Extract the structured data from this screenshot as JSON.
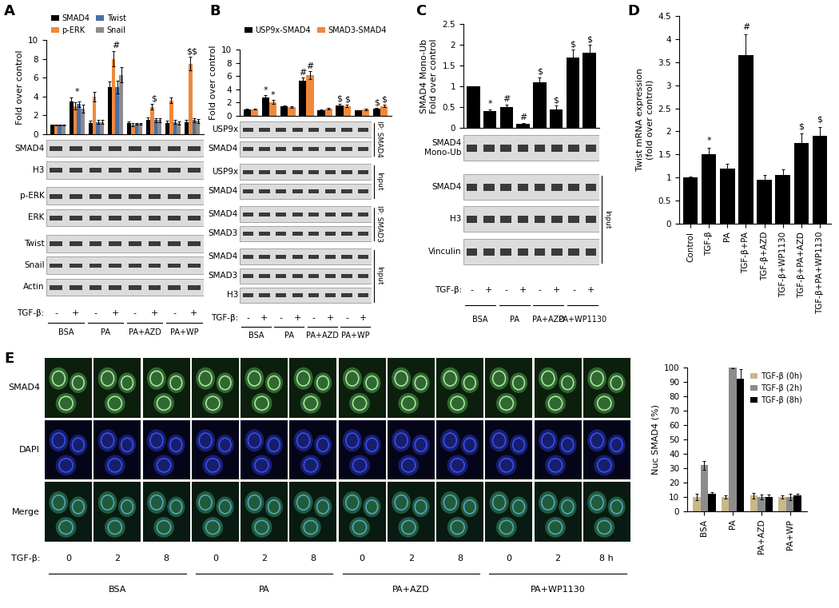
{
  "chart_data": [
    {
      "type": "bar",
      "panel": "A",
      "y_label": "Fold over control",
      "categories": [
        null,
        null,
        null,
        null,
        null,
        null,
        null,
        null
      ],
      "ylim": [
        0,
        10
      ],
      "yticks": [
        0,
        2,
        4,
        6,
        8,
        10
      ],
      "legend": "upper left",
      "annotations": [
        null,
        "*",
        null,
        "#",
        null,
        "$",
        null,
        "$$"
      ],
      "series": [
        {
          "name": "SMAD4",
          "color": "#000000",
          "values": [
            1,
            3.5,
            1.2,
            5.0,
            1.2,
            1.5,
            1.2,
            1.3
          ],
          "errors": [
            0.05,
            0.4,
            0.2,
            0.6,
            0.15,
            0.3,
            0.2,
            0.2
          ]
        },
        {
          "name": "p-ERK",
          "color": "#f0883a",
          "values": [
            1,
            3.0,
            4.0,
            8.0,
            1.0,
            2.9,
            3.6,
            7.5
          ],
          "errors": [
            0.05,
            0.4,
            0.5,
            0.8,
            0.15,
            0.3,
            0.3,
            0.7
          ]
        },
        {
          "name": "Twist",
          "color": "#4a6fa5",
          "values": [
            1,
            3.2,
            1.3,
            5.0,
            1.1,
            1.5,
            1.3,
            1.5
          ],
          "errors": [
            0.05,
            0.3,
            0.2,
            0.7,
            0.1,
            0.2,
            0.2,
            0.2
          ]
        },
        {
          "name": "Snail",
          "color": "#8c8c8c",
          "values": [
            1,
            2.7,
            1.3,
            6.3,
            1.1,
            1.5,
            1.2,
            1.4
          ],
          "errors": [
            0.05,
            0.4,
            0.2,
            0.8,
            0.1,
            0.2,
            0.15,
            0.2
          ]
        }
      ]
    },
    {
      "type": "bar",
      "panel": "B",
      "y_label": "Fold over control",
      "categories": [
        null,
        null,
        null,
        null,
        null,
        null,
        null,
        null
      ],
      "ylim": [
        0,
        10
      ],
      "yticks": [
        0,
        2,
        4,
        6,
        8,
        10
      ],
      "legend": "upper left",
      "series": [
        {
          "name": "USP9x-SMAD4",
          "color": "#000000",
          "values": [
            1,
            2.8,
            1.4,
            5.3,
            0.9,
            1.6,
            0.8,
            1.1
          ],
          "errors": [
            0.05,
            0.3,
            0.15,
            0.5,
            0.1,
            0.2,
            0.1,
            0.15
          ],
          "annotations": [
            null,
            "*",
            null,
            "#",
            null,
            "$",
            null,
            "$"
          ]
        },
        {
          "name": "SMAD3-SMAD4",
          "color": "#f0883a",
          "values": [
            1,
            2.1,
            1.3,
            6.1,
            1.1,
            1.5,
            1.0,
            1.5
          ],
          "errors": [
            0.05,
            0.25,
            0.15,
            0.6,
            0.1,
            0.2,
            0.1,
            0.2
          ],
          "annotations": [
            null,
            "*",
            null,
            "#",
            null,
            "$",
            null,
            "$"
          ]
        }
      ]
    },
    {
      "type": "bar",
      "panel": "C",
      "y_label": "SMAD4 Mono-Ub\nFold over control",
      "categories": [
        null,
        null,
        null,
        null,
        null,
        null,
        null,
        null
      ],
      "ylim": [
        0,
        2.5
      ],
      "yticks": [
        0,
        0.5,
        1,
        1.5,
        2,
        2.5
      ],
      "series": [
        {
          "name": "SMAD4 Mono-Ub",
          "color": "#000000",
          "values": [
            1,
            0.4,
            0.5,
            0.1,
            1.1,
            0.45,
            1.7,
            1.8
          ],
          "errors": [
            0,
            0.05,
            0.06,
            0.02,
            0.12,
            0.08,
            0.18,
            0.2
          ],
          "annotations": [
            null,
            "*",
            "#",
            "#",
            "$",
            "$",
            "$",
            "$"
          ]
        }
      ]
    },
    {
      "type": "bar",
      "panel": "D",
      "y_label": "Twist mRNA expression\n(fold over control)",
      "categories": [
        "Control",
        "TGF-β",
        "PA",
        "TGF-β+PA",
        "TGF-β+AZD",
        "TGF-β+WP1130",
        "TGF-β+PA+AZD",
        "TGF-β+PA+WP1130"
      ],
      "ylim": [
        0,
        4.5
      ],
      "yticks": [
        0,
        0.5,
        1,
        1.5,
        2,
        2.5,
        3,
        3.5,
        4,
        4.5
      ],
      "series": [
        {
          "name": "Twist mRNA",
          "color": "#000000",
          "values": [
            1,
            1.5,
            1.2,
            3.65,
            0.95,
            1.05,
            1.75,
            1.9
          ],
          "errors": [
            0.02,
            0.15,
            0.1,
            0.45,
            0.1,
            0.12,
            0.2,
            0.2
          ],
          "annotations": [
            null,
            "*",
            null,
            "#",
            null,
            null,
            "$",
            "$"
          ]
        }
      ]
    },
    {
      "type": "bar",
      "y_label": "Nuc SMAD4 (%)",
      "categories": [
        "BSA",
        "PA",
        "PA+AZD",
        "PA+WP"
      ],
      "ylim": [
        0,
        100
      ],
      "yticks": [
        0,
        10,
        20,
        30,
        40,
        50,
        60,
        70,
        80,
        90,
        100
      ],
      "legend": "upper right",
      "series": [
        {
          "name": "TGF-β (0h)",
          "color": "#c8b88a",
          "values": [
            10,
            10,
            11,
            10
          ],
          "errors": [
            2,
            1,
            2,
            1
          ]
        },
        {
          "name": "TGF-β (2h)",
          "color": "#8c8c8c",
          "values": [
            32,
            100,
            10,
            10
          ],
          "errors": [
            3,
            0.5,
            1.5,
            2
          ]
        },
        {
          "name": "TGF-β (8h)",
          "color": "#000000",
          "values": [
            12,
            92,
            10,
            11
          ],
          "errors": [
            1.5,
            7,
            1.5,
            1.5
          ]
        }
      ]
    }
  ],
  "blots": [
    {
      "treatment_label": "TGF-β:",
      "groups": [
        {
          "label": "BSA",
          "lanes": [
            "-",
            "+"
          ]
        },
        {
          "label": "PA",
          "lanes": [
            "-",
            "+"
          ]
        },
        {
          "label": "PA+AZD",
          "lanes": [
            "-",
            "+"
          ]
        },
        {
          "label": "PA+WP",
          "lanes": [
            "-",
            "+"
          ]
        }
      ],
      "sections": [
        {
          "rows": [
            "SMAD4",
            "H3"
          ]
        },
        {
          "rows": [
            "p-ERK",
            "ERK"
          ]
        },
        {
          "rows": [
            "Twist",
            "Snail",
            "Actin"
          ]
        }
      ]
    },
    {
      "treatment_label": "TGF-β:",
      "groups": [
        {
          "label": "BSA",
          "lanes": [
            "-",
            "+"
          ]
        },
        {
          "label": "PA",
          "lanes": [
            "-",
            "+"
          ]
        },
        {
          "label": "PA+AZD",
          "lanes": [
            "-",
            "+"
          ]
        },
        {
          "label": "PA+WP",
          "lanes": [
            "-",
            "+"
          ]
        }
      ],
      "sections": [
        {
          "rows": [
            "USP9x",
            "SMAD4"
          ],
          "bracket": "IP: SMAD4"
        },
        {
          "rows": [
            "USP9x",
            "SMAD4"
          ],
          "bracket": "Input"
        },
        {
          "rows": [
            "SMAD4",
            "SMAD3"
          ],
          "bracket": "IP: SMAD3"
        },
        {
          "rows": [
            "SMAD4",
            "SMAD3",
            "H3"
          ],
          "bracket": "Input"
        }
      ]
    },
    {
      "treatment_label": "TGF-β:",
      "groups": [
        {
          "label": "BSA",
          "lanes": [
            "-",
            "+"
          ]
        },
        {
          "label": "PA",
          "lanes": [
            "-",
            "+"
          ]
        },
        {
          "label": "PA+AZD",
          "lanes": [
            "-",
            "+"
          ]
        },
        {
          "label": "PA+WP1130",
          "lanes": [
            "-",
            "+"
          ]
        }
      ],
      "sections": [
        {
          "rows": [
            "SMAD4\nMono-Ub"
          ]
        },
        {
          "rows": [
            "SMAD4",
            "H3",
            "Vinculin"
          ],
          "bracket": "Input"
        }
      ]
    }
  ],
  "microscopy": {
    "panel": "E",
    "treatment_label": "TGF-β:",
    "rows": [
      "SMAD4",
      "DAPI",
      "Merge"
    ],
    "groups": [
      {
        "label": "BSA",
        "times": [
          "0",
          "2",
          "8"
        ]
      },
      {
        "label": "PA",
        "times": [
          "0",
          "2",
          "8"
        ]
      },
      {
        "label": "PA+AZD",
        "times": [
          "0",
          "2",
          "8"
        ]
      },
      {
        "label": "PA+WP1130",
        "times": [
          "0",
          "2",
          "8 h"
        ]
      }
    ]
  }
}
